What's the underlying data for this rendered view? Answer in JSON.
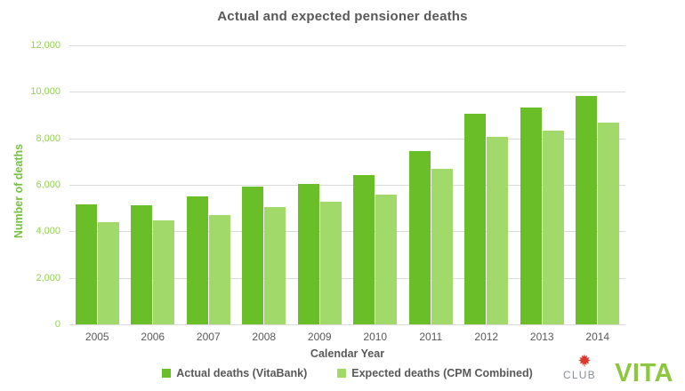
{
  "chart_data": {
    "type": "bar",
    "title": "Actual and expected pensioner deaths",
    "xlabel": "Calendar Year",
    "ylabel": "Number of deaths",
    "categories": [
      "2005",
      "2006",
      "2007",
      "2008",
      "2009",
      "2010",
      "2011",
      "2012",
      "2013",
      "2014"
    ],
    "series": [
      {
        "name": "Actual deaths (VitaBank)",
        "color": "#6ABE28",
        "values": [
          5150,
          5140,
          5520,
          5930,
          6020,
          6440,
          7470,
          9070,
          9310,
          9840
        ]
      },
      {
        "name": "Expected deaths (CPM Combined)",
        "color": "#A1D96B",
        "values": [
          4400,
          4470,
          4700,
          5040,
          5260,
          5570,
          6700,
          8050,
          8340,
          8660
        ]
      }
    ],
    "ylim": [
      0,
      12000
    ],
    "yticks": {
      "values": [
        0,
        2000,
        4000,
        6000,
        8000,
        10000,
        12000
      ],
      "labels": [
        "0",
        "2,000",
        "4,000",
        "6,000",
        "8,000",
        "10,000",
        "12,000"
      ]
    },
    "grid": true,
    "legend_position": "bottom"
  },
  "colors": {
    "title_text": "#595959",
    "axis_text": "#595959",
    "ytick_green": "#92D050",
    "yaxis_title_green": "#76BF43",
    "gridline": "#D9D9D9"
  },
  "logo": {
    "club": "CLUB",
    "vita": "VITA",
    "club_color": "#8A9096",
    "vita_color": "#8DC63F",
    "leaf_color": "#D93A2B"
  }
}
